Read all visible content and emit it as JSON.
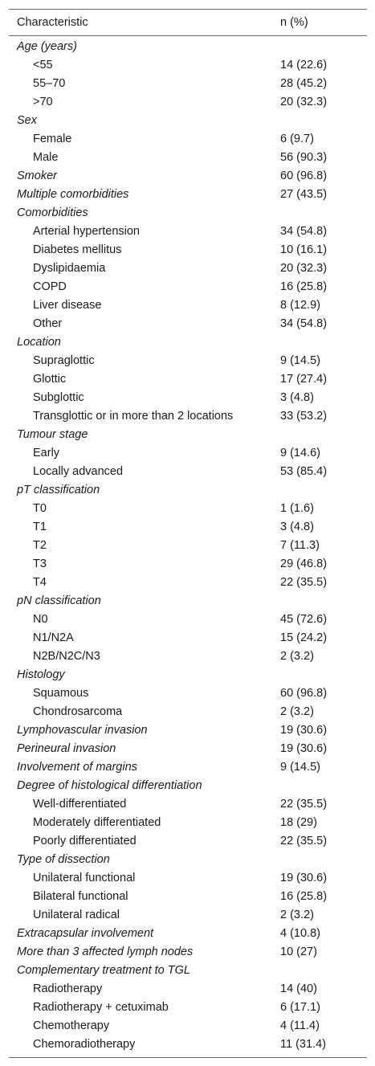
{
  "header": {
    "characteristic": "Characteristic",
    "n_pct": "n (%)"
  },
  "rows": [
    {
      "kind": "section",
      "label": "Age (years)",
      "value": ""
    },
    {
      "kind": "item",
      "label": "<55",
      "value": "14 (22.6)"
    },
    {
      "kind": "item",
      "label": "55–70",
      "value": "28 (45.2)"
    },
    {
      "kind": "item",
      "label": ">70",
      "value": "20 (32.3)"
    },
    {
      "kind": "section",
      "label": "Sex",
      "value": ""
    },
    {
      "kind": "item",
      "label": "Female",
      "value": "6 (9.7)"
    },
    {
      "kind": "item",
      "label": "Male",
      "value": "56 (90.3)"
    },
    {
      "kind": "section",
      "label": "Smoker",
      "value": "60 (96.8)"
    },
    {
      "kind": "section",
      "label": "Multiple comorbidities",
      "value": "27 (43.5)"
    },
    {
      "kind": "section",
      "label": "Comorbidities",
      "value": ""
    },
    {
      "kind": "item",
      "label": "Arterial hypertension",
      "value": "34 (54.8)"
    },
    {
      "kind": "item",
      "label": "Diabetes mellitus",
      "value": "10 (16.1)"
    },
    {
      "kind": "item",
      "label": "Dyslipidaemia",
      "value": "20 (32.3)"
    },
    {
      "kind": "item",
      "label": "COPD",
      "value": "16 (25.8)"
    },
    {
      "kind": "item",
      "label": "Liver disease",
      "value": "8 (12.9)"
    },
    {
      "kind": "item",
      "label": "Other",
      "value": "34 (54.8)"
    },
    {
      "kind": "section",
      "label": "Location",
      "value": ""
    },
    {
      "kind": "item",
      "label": "Supraglottic",
      "value": "9 (14.5)"
    },
    {
      "kind": "item",
      "label": "Glottic",
      "value": "17 (27.4)"
    },
    {
      "kind": "item",
      "label": "Subglottic",
      "value": "3 (4.8)"
    },
    {
      "kind": "item",
      "label": "Transglottic or in more than 2 locations",
      "value": "33 (53.2)"
    },
    {
      "kind": "section",
      "label": "Tumour stage",
      "value": ""
    },
    {
      "kind": "item",
      "label": "Early",
      "value": "9 (14.6)"
    },
    {
      "kind": "item",
      "label": "Locally advanced",
      "value": "53 (85.4)"
    },
    {
      "kind": "section",
      "label": "pT classification",
      "value": ""
    },
    {
      "kind": "item",
      "label": "T0",
      "value": "1 (1.6)"
    },
    {
      "kind": "item",
      "label": "T1",
      "value": "3 (4.8)"
    },
    {
      "kind": "item",
      "label": "T2",
      "value": "7 (11.3)"
    },
    {
      "kind": "item",
      "label": "T3",
      "value": "29 (46.8)"
    },
    {
      "kind": "item",
      "label": "T4",
      "value": "22 (35.5)"
    },
    {
      "kind": "section",
      "label": "pN classification",
      "value": ""
    },
    {
      "kind": "item",
      "label": "N0",
      "value": "45 (72.6)"
    },
    {
      "kind": "item",
      "label": "N1/N2A",
      "value": "15 (24.2)"
    },
    {
      "kind": "item",
      "label": "N2B/N2C/N3",
      "value": "2 (3.2)"
    },
    {
      "kind": "section",
      "label": "Histology",
      "value": ""
    },
    {
      "kind": "item",
      "label": "Squamous",
      "value": "60 (96.8)"
    },
    {
      "kind": "item",
      "label": "Chondrosarcoma",
      "value": "2 (3.2)"
    },
    {
      "kind": "section",
      "label": "Lymphovascular invasion",
      "value": "19 (30.6)"
    },
    {
      "kind": "section",
      "label": "Perineural invasion",
      "value": "19 (30.6)"
    },
    {
      "kind": "section",
      "label": "Involvement of margins",
      "value": "9 (14.5)"
    },
    {
      "kind": "section",
      "label": "Degree of histological differentiation",
      "value": ""
    },
    {
      "kind": "item",
      "label": "Well-differentiated",
      "value": "22 (35.5)"
    },
    {
      "kind": "item",
      "label": "Moderately differentiated",
      "value": "18 (29)"
    },
    {
      "kind": "item",
      "label": "Poorly differentiated",
      "value": "22 (35.5)"
    },
    {
      "kind": "section",
      "label": "Type of dissection",
      "value": ""
    },
    {
      "kind": "item",
      "label": "Unilateral functional",
      "value": "19 (30.6)"
    },
    {
      "kind": "item",
      "label": "Bilateral functional",
      "value": "16 (25.8)"
    },
    {
      "kind": "item",
      "label": "Unilateral radical",
      "value": "2 (3.2)"
    },
    {
      "kind": "section",
      "label": "Extracapsular involvement",
      "value": "4 (10.8)"
    },
    {
      "kind": "section",
      "label": "More than 3 affected lymph nodes",
      "value": "10 (27)"
    },
    {
      "kind": "section",
      "label": "Complementary treatment to TGL",
      "value": ""
    },
    {
      "kind": "item",
      "label": "Radiotherapy",
      "value": "14 (40)"
    },
    {
      "kind": "item",
      "label": "Radiotherapy + cetuximab",
      "value": "6 (17.1)"
    },
    {
      "kind": "item",
      "label": "Chemotherapy",
      "value": "4 (11.4)"
    },
    {
      "kind": "item",
      "label": "Chemoradiotherapy",
      "value": "11 (31.4)"
    }
  ]
}
